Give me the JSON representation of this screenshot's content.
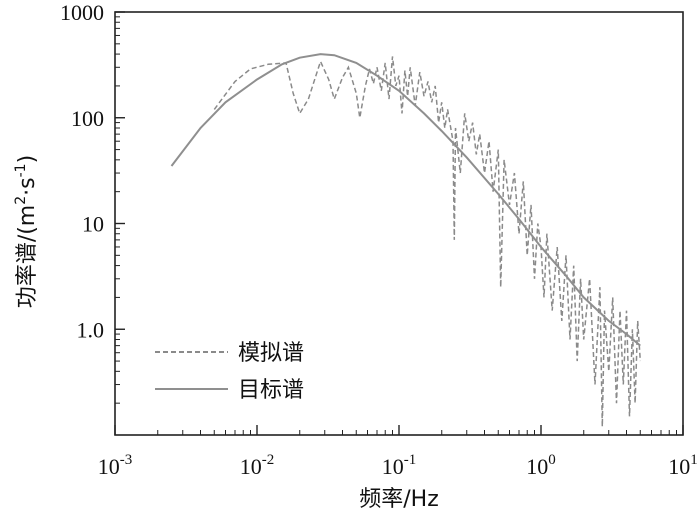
{
  "chart_data": {
    "type": "line",
    "xscale": "log",
    "yscale": "log",
    "xlim": [
      0.001,
      10
    ],
    "ylim": [
      0.1,
      1000
    ],
    "x_ticks": [
      {
        "value": 0.001,
        "base": "10",
        "exp": "-3"
      },
      {
        "value": 0.01,
        "base": "10",
        "exp": "-2"
      },
      {
        "value": 0.1,
        "base": "10",
        "exp": "-1"
      },
      {
        "value": 1,
        "base": "10",
        "exp": "0"
      },
      {
        "value": 10,
        "base": "10",
        "exp": "1"
      }
    ],
    "y_ticks": [
      {
        "value": 1,
        "label": "1.0"
      },
      {
        "value": 10,
        "label": "10"
      },
      {
        "value": 100,
        "label": "100"
      },
      {
        "value": 1000,
        "label": "1000"
      }
    ],
    "xlabel": "频率/Hz",
    "ylabel": {
      "main": "功率谱/(m",
      "sup1": "2",
      "mid": "·s",
      "sup2": "-1",
      "end": ")"
    },
    "grid": false,
    "legend": "lower-left",
    "series": [
      {
        "name": "模拟谱",
        "style": "dashed",
        "color": "#8a8a8a",
        "points": [
          [
            0.005,
            120
          ],
          [
            0.007,
            220
          ],
          [
            0.009,
            290
          ],
          [
            0.012,
            320
          ],
          [
            0.016,
            330
          ],
          [
            0.018,
            170
          ],
          [
            0.02,
            110
          ],
          [
            0.023,
            150
          ],
          [
            0.026,
            250
          ],
          [
            0.028,
            340
          ],
          [
            0.032,
            230
          ],
          [
            0.035,
            150
          ],
          [
            0.04,
            240
          ],
          [
            0.044,
            300
          ],
          [
            0.05,
            170
          ],
          [
            0.053,
            100
          ],
          [
            0.058,
            200
          ],
          [
            0.062,
            290
          ],
          [
            0.066,
            210
          ],
          [
            0.07,
            300
          ],
          [
            0.075,
            180
          ],
          [
            0.08,
            330
          ],
          [
            0.085,
            150
          ],
          [
            0.09,
            380
          ],
          [
            0.095,
            200
          ],
          [
            0.1,
            250
          ],
          [
            0.105,
            110
          ],
          [
            0.11,
            280
          ],
          [
            0.115,
            160
          ],
          [
            0.12,
            300
          ],
          [
            0.13,
            130
          ],
          [
            0.14,
            270
          ],
          [
            0.15,
            160
          ],
          [
            0.16,
            220
          ],
          [
            0.17,
            140
          ],
          [
            0.18,
            200
          ],
          [
            0.19,
            90
          ],
          [
            0.2,
            140
          ],
          [
            0.21,
            80
          ],
          [
            0.22,
            120
          ],
          [
            0.24,
            60
          ],
          [
            0.245,
            7
          ],
          [
            0.25,
            80
          ],
          [
            0.27,
            30
          ],
          [
            0.29,
            110
          ],
          [
            0.31,
            60
          ],
          [
            0.33,
            90
          ],
          [
            0.35,
            45
          ],
          [
            0.37,
            70
          ],
          [
            0.4,
            30
          ],
          [
            0.43,
            60
          ],
          [
            0.46,
            20
          ],
          [
            0.5,
            50
          ],
          [
            0.52,
            2.5
          ],
          [
            0.55,
            40
          ],
          [
            0.6,
            15
          ],
          [
            0.65,
            30
          ],
          [
            0.7,
            8
          ],
          [
            0.75,
            25
          ],
          [
            0.8,
            5
          ],
          [
            0.85,
            15
          ],
          [
            0.9,
            3
          ],
          [
            0.95,
            10
          ],
          [
            1.0,
            6
          ],
          [
            1.05,
            2
          ],
          [
            1.1,
            8
          ],
          [
            1.2,
            1.5
          ],
          [
            1.3,
            6
          ],
          [
            1.4,
            1.2
          ],
          [
            1.5,
            5
          ],
          [
            1.6,
            0.8
          ],
          [
            1.7,
            4
          ],
          [
            1.8,
            0.5
          ],
          [
            1.9,
            3
          ],
          [
            2.0,
            0.8
          ],
          [
            2.2,
            3
          ],
          [
            2.4,
            0.3
          ],
          [
            2.6,
            2.5
          ],
          [
            2.7,
            0.12
          ],
          [
            2.8,
            1.5
          ],
          [
            3.0,
            0.4
          ],
          [
            3.2,
            2
          ],
          [
            3.4,
            0.2
          ],
          [
            3.6,
            1.5
          ],
          [
            3.8,
            0.3
          ],
          [
            4.0,
            1.5
          ],
          [
            4.2,
            0.15
          ],
          [
            4.4,
            1
          ],
          [
            4.6,
            0.2
          ],
          [
            4.8,
            1.2
          ],
          [
            5.0,
            0.5
          ]
        ]
      },
      {
        "name": "目标谱",
        "style": "solid",
        "color": "#8f8f8f",
        "points": [
          [
            0.0025,
            35
          ],
          [
            0.004,
            80
          ],
          [
            0.006,
            140
          ],
          [
            0.01,
            230
          ],
          [
            0.015,
            320
          ],
          [
            0.02,
            370
          ],
          [
            0.028,
            400
          ],
          [
            0.035,
            390
          ],
          [
            0.05,
            330
          ],
          [
            0.07,
            250
          ],
          [
            0.1,
            180
          ],
          [
            0.15,
            110
          ],
          [
            0.2,
            75
          ],
          [
            0.3,
            42
          ],
          [
            0.5,
            19
          ],
          [
            0.7,
            11
          ],
          [
            1.0,
            6
          ],
          [
            1.5,
            3.2
          ],
          [
            2.0,
            2
          ],
          [
            3.0,
            1.2
          ],
          [
            4.0,
            0.9
          ],
          [
            5.0,
            0.7
          ]
        ]
      }
    ]
  }
}
